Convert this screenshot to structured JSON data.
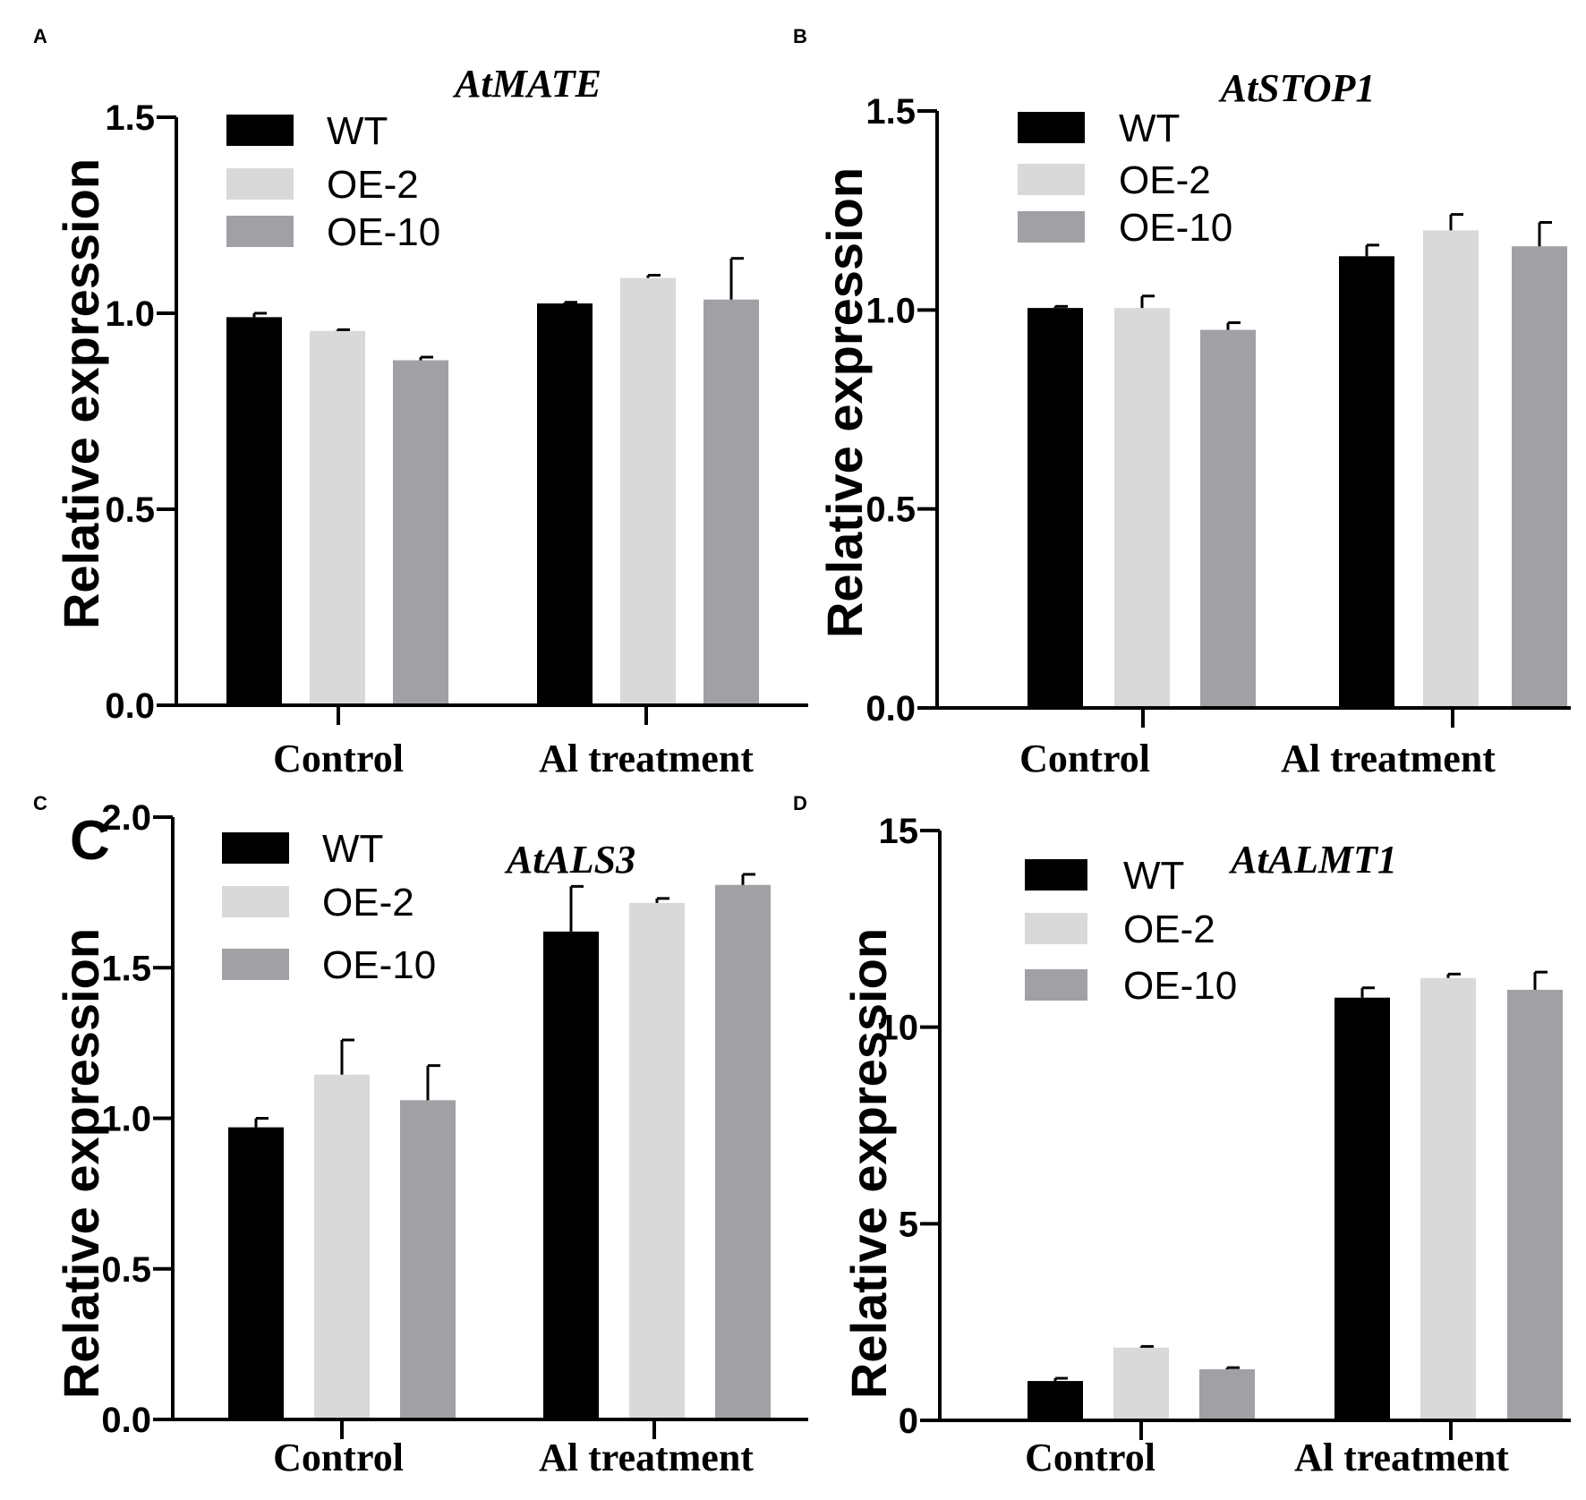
{
  "figure": {
    "panels": [
      {
        "letter": "A"
      },
      {
        "letter": "B"
      },
      {
        "letter": "C",
        "stray_letter": "C"
      },
      {
        "letter": "D"
      }
    ]
  },
  "chart_data": [
    {
      "panel": "A",
      "type": "bar",
      "title": "AtMATE",
      "ylabel": "Relative  expression",
      "xlabel": "",
      "categories": [
        "Control",
        "Al treatment"
      ],
      "ylim": [
        0,
        1.5
      ],
      "yticks": [
        0.0,
        0.5,
        1.0,
        1.5
      ],
      "ytick_labels": [
        "0.0",
        "0.5",
        "1.0",
        "1.5"
      ],
      "colors": [
        "#000000",
        "#d9d9d9",
        "#a0a0a5"
      ],
      "series": [
        {
          "name": "WT",
          "values": [
            0.99,
            1.025
          ],
          "errors": [
            0.01,
            0.003
          ]
        },
        {
          "name": "OE-2",
          "values": [
            0.955,
            1.09
          ],
          "errors": [
            0.003,
            0.007
          ]
        },
        {
          "name": "OE-10",
          "values": [
            0.88,
            1.035
          ],
          "errors": [
            0.008,
            0.105
          ]
        }
      ]
    },
    {
      "panel": "B",
      "type": "bar",
      "title": "AtSTOP1",
      "ylabel": "Relative  expression",
      "xlabel": "",
      "categories": [
        "Control",
        "Al treatment"
      ],
      "ylim": [
        0,
        1.5
      ],
      "yticks": [
        0.0,
        0.5,
        1.0,
        1.5
      ],
      "ytick_labels": [
        "0.0",
        "0.5",
        "1.0",
        "1.5"
      ],
      "colors": [
        "#000000",
        "#d9d9d9",
        "#a0a0a5"
      ],
      "series": [
        {
          "name": "WT",
          "values": [
            1.005,
            1.135
          ],
          "errors": [
            0.004,
            0.028
          ]
        },
        {
          "name": "OE-2",
          "values": [
            1.005,
            1.2
          ],
          "errors": [
            0.03,
            0.04
          ]
        },
        {
          "name": "OE-10",
          "values": [
            0.95,
            1.16
          ],
          "errors": [
            0.018,
            0.06
          ]
        }
      ]
    },
    {
      "panel": "C",
      "type": "bar",
      "title": "AtALS3",
      "ylabel": "Relative  expression",
      "xlabel": "",
      "categories": [
        "Control",
        "Al treatment"
      ],
      "ylim": [
        0,
        2.0
      ],
      "yticks": [
        0.0,
        0.5,
        1.0,
        1.5,
        2.0
      ],
      "ytick_labels": [
        "0.0",
        "0.5",
        "1.0",
        "1.5",
        "2.0"
      ],
      "colors": [
        "#000000",
        "#d9d9d9",
        "#a0a0a5"
      ],
      "series": [
        {
          "name": "WT",
          "values": [
            0.97,
            1.62
          ],
          "errors": [
            0.03,
            0.15
          ]
        },
        {
          "name": "OE-2",
          "values": [
            1.145,
            1.715
          ],
          "errors": [
            0.115,
            0.015
          ]
        },
        {
          "name": "OE-10",
          "values": [
            1.06,
            1.775
          ],
          "errors": [
            0.115,
            0.035
          ]
        }
      ]
    },
    {
      "panel": "D",
      "type": "bar",
      "title": "AtALMT1",
      "ylabel": "Relative  expression",
      "xlabel": "",
      "categories": [
        "Control",
        "Al treatment"
      ],
      "ylim": [
        0,
        15
      ],
      "yticks": [
        0,
        5,
        10,
        15
      ],
      "ytick_labels": [
        "0",
        "5",
        "10",
        "15"
      ],
      "colors": [
        "#000000",
        "#d9d9d9",
        "#a0a0a5"
      ],
      "series": [
        {
          "name": "WT",
          "values": [
            1.0,
            10.75
          ],
          "errors": [
            0.07,
            0.25
          ]
        },
        {
          "name": "OE-2",
          "values": [
            1.85,
            11.25
          ],
          "errors": [
            0.03,
            0.1
          ]
        },
        {
          "name": "OE-10",
          "values": [
            1.3,
            10.95
          ],
          "errors": [
            0.04,
            0.45
          ]
        }
      ]
    }
  ]
}
